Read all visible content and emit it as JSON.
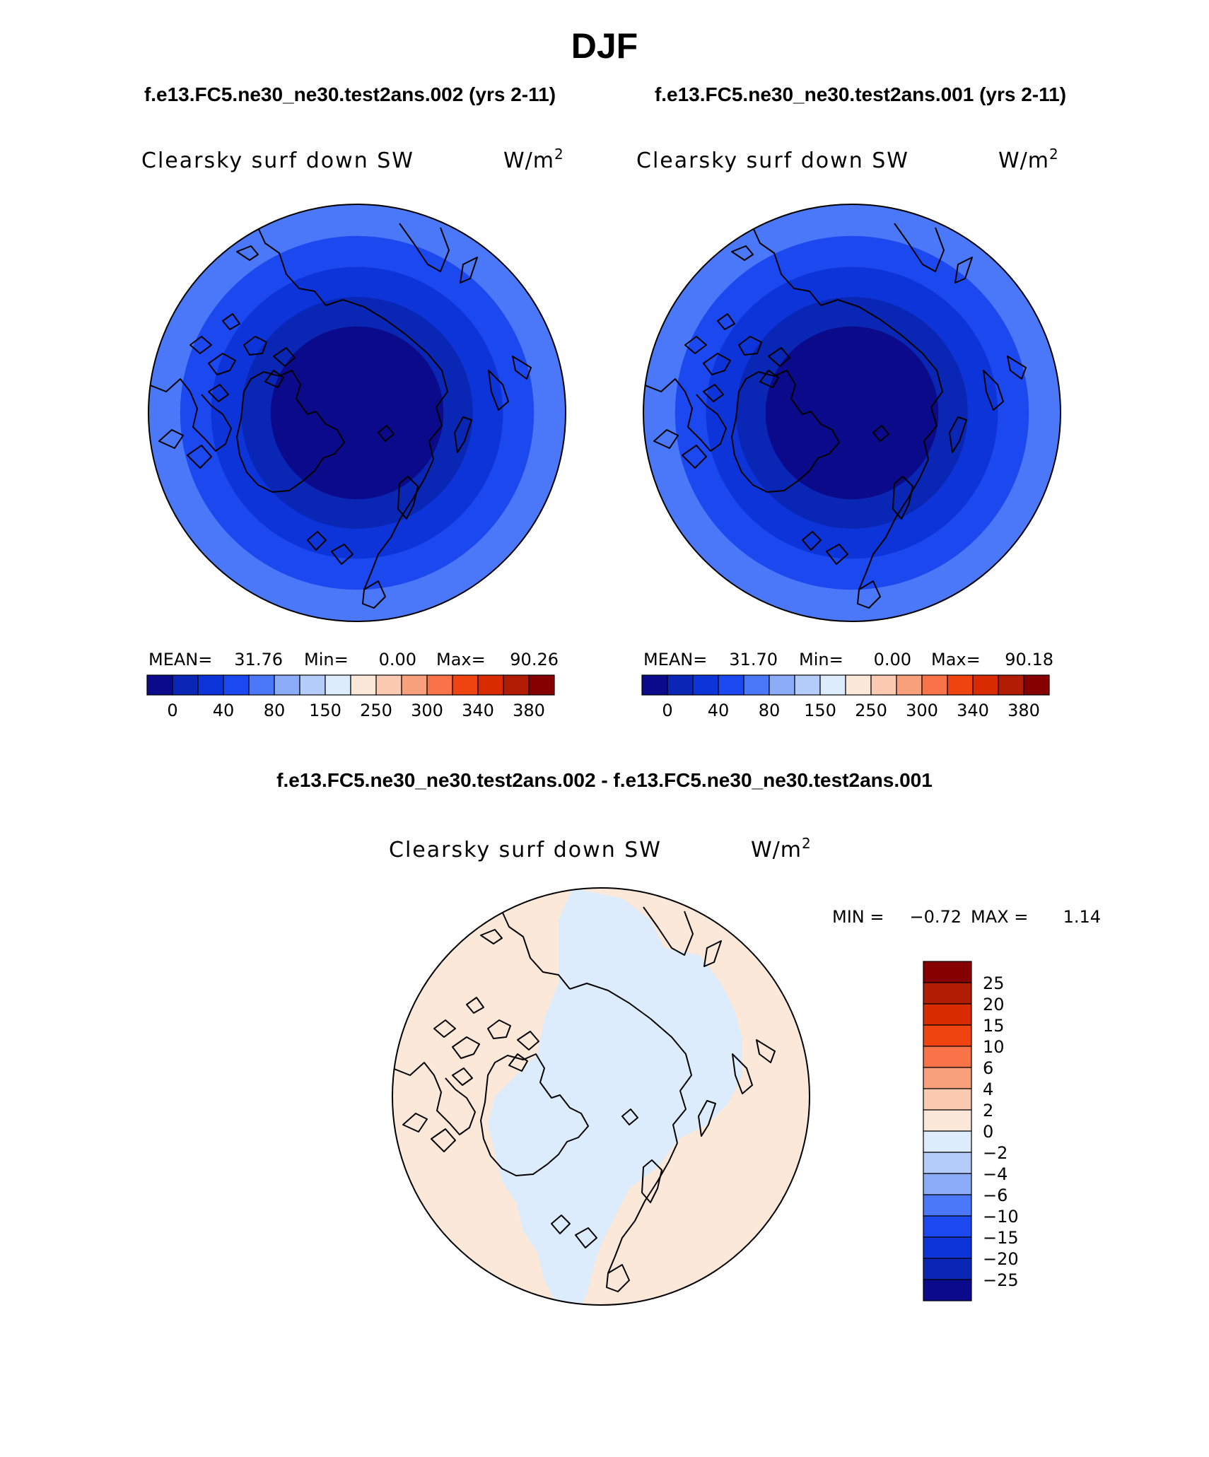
{
  "season": "DJF",
  "header": {
    "case_left": "f.e13.FC5.ne30_ne30.test2ans.002 (yrs 2-11)",
    "case_right": "f.e13.FC5.ne30_ne30.test2ans.001 (yrs 2-11)",
    "diff_title": "f.e13.FC5.ne30_ne30.test2ans.002 - f.e13.FC5.ne30_ne30.test2ans.001"
  },
  "colors": {
    "abs_scale": [
      "#0a0a8a",
      "#0a26b4",
      "#0c34d8",
      "#1c48f0",
      "#4a78f8",
      "#8cacf8",
      "#b4ccfa",
      "#dcecfc",
      "#fce8d8",
      "#fccab0",
      "#f8a07c",
      "#f87448",
      "#f04410",
      "#d82c00",
      "#b01c04",
      "#860000"
    ],
    "diff_scale": [
      "#0a0a8a",
      "#0a26b4",
      "#0c34d8",
      "#1c48f0",
      "#4a78f8",
      "#8cacf8",
      "#b4ccfa",
      "#dcecfc",
      "#fce8d8",
      "#fccab0",
      "#f8a07c",
      "#f87448",
      "#f04410",
      "#d82c00",
      "#b01c04",
      "#860000"
    ],
    "coast": "#000000"
  },
  "chart_data": [
    {
      "type": "map",
      "projection": "north-polar-stereographic",
      "variable": "Clearsky surf down SW",
      "units": "W/m",
      "units_sup": "2",
      "stats": {
        "mean_label": "MEAN=",
        "mean": "31.76",
        "min_label": "Min=",
        "min": "0.00",
        "max_label": "Max=",
        "max": "90.26"
      },
      "levels": [
        "0",
        "40",
        "80",
        "150",
        "250",
        "300",
        "340",
        "380"
      ],
      "field_rings": [
        {
          "from_lat": 90,
          "to_lat": 72,
          "color_index": 0
        },
        {
          "from_lat": 72,
          "to_lat": 66,
          "color_index": 1
        },
        {
          "from_lat": 66,
          "to_lat": 60,
          "color_index": 2
        },
        {
          "from_lat": 60,
          "to_lat": 54,
          "color_index": 3
        },
        {
          "from_lat": 54,
          "to_lat": 48,
          "color_index": 4
        }
      ]
    },
    {
      "type": "map",
      "projection": "north-polar-stereographic",
      "variable": "Clearsky surf down SW",
      "units": "W/m",
      "units_sup": "2",
      "stats": {
        "mean_label": "MEAN=",
        "mean": "31.70",
        "min_label": "Min=",
        "min": "0.00",
        "max_label": "Max=",
        "max": "90.18"
      },
      "levels": [
        "0",
        "40",
        "80",
        "150",
        "250",
        "300",
        "340",
        "380"
      ],
      "field_rings": [
        {
          "from_lat": 90,
          "to_lat": 72,
          "color_index": 0
        },
        {
          "from_lat": 72,
          "to_lat": 66,
          "color_index": 1
        },
        {
          "from_lat": 66,
          "to_lat": 60,
          "color_index": 2
        },
        {
          "from_lat": 60,
          "to_lat": 54,
          "color_index": 3
        },
        {
          "from_lat": 54,
          "to_lat": 48,
          "color_index": 4
        }
      ]
    },
    {
      "type": "map",
      "projection": "north-polar-stereographic",
      "variable": "Clearsky surf down SW",
      "units": "W/m",
      "units_sup": "2",
      "stats": {
        "min_label": "MIN =",
        "min": "−0.72",
        "max_label": "MAX =",
        "max": "1.14"
      },
      "levels": [
        "25",
        "20",
        "15",
        "10",
        "6",
        "4",
        "2",
        "0",
        "−2",
        "−4",
        "−6",
        "−10",
        "−15",
        "−20",
        "−25"
      ],
      "background_color_index": 8,
      "negative_color_index": 7
    }
  ]
}
